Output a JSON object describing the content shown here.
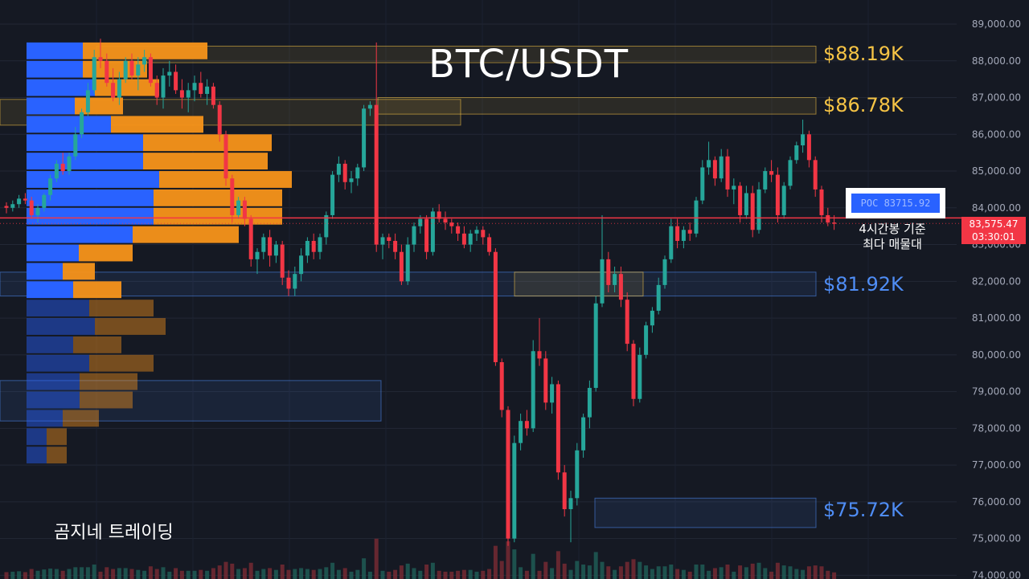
{
  "chart_data": {
    "type": "candlestick",
    "title": "BTC/USDT",
    "y_axis": {
      "ticks": [
        "89,000.00",
        "88,000.00",
        "87,000.00",
        "86,000.00",
        "85,000.00",
        "84,000.00",
        "83,000.00",
        "82,000.00",
        "81,000.00",
        "80,000.00",
        "79,000.00",
        "78,000.00",
        "77,000.00",
        "76,000.00",
        "75,000.00",
        "74,000.00"
      ],
      "tick_values": [
        89000,
        88000,
        87000,
        86000,
        85000,
        84000,
        83000,
        82000,
        81000,
        80000,
        79000,
        78000,
        77000,
        76000,
        75000,
        74000
      ],
      "range": [
        73900,
        89400
      ]
    },
    "current_price": {
      "value": 83575.47,
      "label": "83,575.47",
      "countdown": "03:30:01"
    },
    "poc": {
      "label": "POC",
      "value": "83715.92",
      "note_line1": "4시간봉 기준",
      "note_line2": "최다 매물대"
    },
    "levels": [
      {
        "label": "$88.19K",
        "value": 88190,
        "kind": "resistance"
      },
      {
        "label": "$86.78K",
        "value": 86780,
        "kind": "resistance"
      },
      {
        "label": "$81.92K",
        "value": 81920,
        "kind": "support"
      },
      {
        "label": "$75.72K",
        "value": 75720,
        "kind": "support"
      }
    ],
    "candles": [
      [
        84050,
        84150,
        83850,
        84000
      ],
      [
        84000,
        84200,
        83900,
        84100
      ],
      [
        84100,
        84350,
        84000,
        84250
      ],
      [
        84250,
        84400,
        84100,
        84200
      ],
      [
        84200,
        84300,
        83700,
        83800
      ],
      [
        83800,
        84100,
        83600,
        84000
      ],
      [
        84000,
        84400,
        83900,
        84350
      ],
      [
        84350,
        84900,
        84200,
        84800
      ],
      [
        84800,
        85300,
        84700,
        85200
      ],
      [
        85200,
        85500,
        84900,
        85000
      ],
      [
        85000,
        85500,
        84900,
        85400
      ],
      [
        85400,
        86200,
        85300,
        86000
      ],
      [
        86000,
        86700,
        85900,
        86600
      ],
      [
        86600,
        87400,
        86500,
        87200
      ],
      [
        87200,
        88300,
        87100,
        88100
      ],
      [
        88100,
        88600,
        87800,
        88000
      ],
      [
        88000,
        88200,
        87300,
        87400
      ],
      [
        87400,
        87800,
        86900,
        87000
      ],
      [
        87000,
        87700,
        86800,
        87500
      ],
      [
        87500,
        88100,
        87400,
        88000
      ],
      [
        88000,
        88200,
        87500,
        87600
      ],
      [
        87600,
        88100,
        87200,
        87900
      ],
      [
        87900,
        88300,
        87700,
        88100
      ],
      [
        88100,
        88200,
        87300,
        87400
      ],
      [
        87400,
        87600,
        86800,
        87000
      ],
      [
        87000,
        87800,
        86700,
        87600
      ],
      [
        87600,
        88000,
        87300,
        87700
      ],
      [
        87700,
        87900,
        87100,
        87200
      ],
      [
        87200,
        87500,
        86700,
        87000
      ],
      [
        87000,
        87400,
        86600,
        87200
      ],
      [
        87200,
        87600,
        86900,
        87400
      ],
      [
        87400,
        87700,
        87000,
        87100
      ],
      [
        87100,
        87500,
        86800,
        87300
      ],
      [
        87300,
        87400,
        86700,
        86800
      ],
      [
        86800,
        86900,
        85800,
        86000
      ],
      [
        86000,
        86100,
        84600,
        84800
      ],
      [
        84800,
        84900,
        83600,
        83800
      ],
      [
        83800,
        84300,
        83700,
        84200
      ],
      [
        84200,
        84300,
        83500,
        83700
      ],
      [
        83700,
        83800,
        82400,
        82600
      ],
      [
        82600,
        82900,
        82200,
        82800
      ],
      [
        82800,
        83300,
        82600,
        83200
      ],
      [
        83200,
        83400,
        82400,
        82700
      ],
      [
        82700,
        83100,
        82500,
        83000
      ],
      [
        83000,
        83100,
        81900,
        82100
      ],
      [
        82100,
        82300,
        81600,
        81800
      ],
      [
        81800,
        82400,
        81600,
        82200
      ],
      [
        82200,
        82900,
        82000,
        82700
      ],
      [
        82700,
        83200,
        82500,
        83100
      ],
      [
        83100,
        83300,
        82600,
        82800
      ],
      [
        82800,
        83300,
        82600,
        83200
      ],
      [
        83200,
        83900,
        83000,
        83800
      ],
      [
        83800,
        85000,
        83700,
        84900
      ],
      [
        84900,
        85400,
        84700,
        85200
      ],
      [
        85200,
        85300,
        84500,
        84700
      ],
      [
        84700,
        85000,
        84400,
        84800
      ],
      [
        84800,
        85200,
        84600,
        85100
      ],
      [
        85100,
        86800,
        85000,
        86700
      ],
      [
        86700,
        86900,
        86500,
        86800
      ],
      [
        86800,
        88500,
        82800,
        83000
      ],
      [
        83000,
        83300,
        82600,
        83200
      ],
      [
        83200,
        83300,
        82900,
        83100
      ],
      [
        83100,
        83300,
        82600,
        82800
      ],
      [
        82800,
        83000,
        81900,
        82000
      ],
      [
        82000,
        83200,
        81900,
        83000
      ],
      [
        83000,
        83600,
        82800,
        83500
      ],
      [
        83500,
        83800,
        83300,
        83700
      ],
      [
        83700,
        83800,
        82600,
        82800
      ],
      [
        82800,
        84000,
        82700,
        83900
      ],
      [
        83900,
        84100,
        83600,
        83700
      ],
      [
        83700,
        83900,
        83400,
        83600
      ],
      [
        83600,
        83700,
        83300,
        83500
      ],
      [
        83500,
        83600,
        83100,
        83300
      ],
      [
        83300,
        83500,
        82900,
        83000
      ],
      [
        83000,
        83400,
        82800,
        83300
      ],
      [
        83300,
        83500,
        83100,
        83400
      ],
      [
        83400,
        83500,
        83000,
        83200
      ],
      [
        83200,
        83300,
        82700,
        82800
      ],
      [
        82800,
        82900,
        79700,
        79800
      ],
      [
        79800,
        79900,
        78300,
        78500
      ],
      [
        78500,
        78600,
        74800,
        75000
      ],
      [
        75000,
        77800,
        74900,
        77600
      ],
      [
        77600,
        78400,
        77400,
        78200
      ],
      [
        78200,
        78500,
        77800,
        78000
      ],
      [
        78000,
        80400,
        77900,
        80100
      ],
      [
        80100,
        81000,
        79700,
        79900
      ],
      [
        79900,
        80100,
        78500,
        78700
      ],
      [
        78700,
        79400,
        78400,
        79200
      ],
      [
        79200,
        79300,
        76600,
        76800
      ],
      [
        76800,
        77000,
        75600,
        75800
      ],
      [
        75800,
        76300,
        74900,
        76100
      ],
      [
        76100,
        77600,
        75900,
        77400
      ],
      [
        77400,
        78400,
        77200,
        78300
      ],
      [
        78300,
        79300,
        78000,
        79100
      ],
      [
        79100,
        81600,
        79000,
        81400
      ],
      [
        81400,
        83800,
        81300,
        82600
      ],
      [
        82600,
        82800,
        81700,
        81900
      ],
      [
        81900,
        82400,
        81700,
        82200
      ],
      [
        82200,
        82400,
        81300,
        81500
      ],
      [
        81500,
        81700,
        80100,
        80300
      ],
      [
        80300,
        80400,
        78600,
        78800
      ],
      [
        78800,
        80200,
        78700,
        80000
      ],
      [
        80000,
        80900,
        79900,
        80800
      ],
      [
        80800,
        81300,
        80600,
        81200
      ],
      [
        81200,
        82100,
        81100,
        81900
      ],
      [
        81900,
        82700,
        81800,
        82600
      ],
      [
        82600,
        83700,
        82500,
        83500
      ],
      [
        83500,
        83700,
        82900,
        83100
      ],
      [
        83100,
        83500,
        82900,
        83400
      ],
      [
        83400,
        83600,
        83100,
        83300
      ],
      [
        83300,
        84300,
        83200,
        84200
      ],
      [
        84200,
        85300,
        84100,
        85100
      ],
      [
        85100,
        85800,
        84900,
        85300
      ],
      [
        85300,
        85400,
        84600,
        84800
      ],
      [
        84800,
        85600,
        84700,
        85400
      ],
      [
        85400,
        85600,
        84300,
        84500
      ],
      [
        84500,
        84800,
        84100,
        84600
      ],
      [
        84600,
        84700,
        83600,
        83800
      ],
      [
        83800,
        84600,
        83700,
        84400
      ],
      [
        84400,
        84600,
        83200,
        83400
      ],
      [
        83400,
        84700,
        83300,
        84500
      ],
      [
        84500,
        85100,
        84400,
        85000
      ],
      [
        85000,
        85300,
        84700,
        84900
      ],
      [
        84900,
        85100,
        83600,
        83800
      ],
      [
        83800,
        84700,
        83700,
        84600
      ],
      [
        84600,
        85400,
        84500,
        85300
      ],
      [
        85300,
        85800,
        85200,
        85700
      ],
      [
        85700,
        86400,
        85500,
        86000
      ],
      [
        86000,
        86100,
        85100,
        85300
      ],
      [
        85300,
        85400,
        84300,
        84500
      ],
      [
        84500,
        84600,
        83600,
        83800
      ],
      [
        83800,
        84000,
        83500,
        83600
      ],
      [
        83600,
        83800,
        83400,
        83575
      ]
    ],
    "volume_profile": [
      {
        "price": 88000,
        "buy": 70,
        "sell": 155,
        "active": true
      },
      {
        "price": 87500,
        "buy": 70,
        "sell": 80,
        "active": true
      },
      {
        "price": 87000,
        "buy": 85,
        "sell": 80,
        "active": true
      },
      {
        "price": 86500,
        "buy": 60,
        "sell": 60,
        "active": true
      },
      {
        "price": 86000,
        "buy": 105,
        "sell": 115,
        "active": true
      },
      {
        "price": 85500,
        "buy": 145,
        "sell": 160,
        "active": true
      },
      {
        "price": 85000,
        "buy": 145,
        "sell": 155,
        "active": true
      },
      {
        "price": 84500,
        "buy": 165,
        "sell": 165,
        "active": true
      },
      {
        "price": 84000,
        "buy": 158,
        "sell": 160,
        "active": true
      },
      {
        "price": 83500,
        "buy": 158,
        "sell": 160,
        "active": true
      },
      {
        "price": 83000,
        "buy": 132,
        "sell": 132,
        "active": true
      },
      {
        "price": 82500,
        "buy": 65,
        "sell": 67,
        "active": true
      },
      {
        "price": 82000,
        "buy": 45,
        "sell": 40,
        "active": true
      },
      {
        "price": 81500,
        "buy": 58,
        "sell": 60,
        "active": true
      },
      {
        "price": 81000,
        "buy": 78,
        "sell": 80,
        "active": false
      },
      {
        "price": 80500,
        "buy": 85,
        "sell": 88,
        "active": false
      },
      {
        "price": 80000,
        "buy": 58,
        "sell": 60,
        "active": false
      },
      {
        "price": 79500,
        "buy": 78,
        "sell": 80,
        "active": false
      },
      {
        "price": 79000,
        "buy": 66,
        "sell": 72,
        "active": false
      },
      {
        "price": 78500,
        "buy": 66,
        "sell": 66,
        "active": false
      },
      {
        "price": 78000,
        "buy": 45,
        "sell": 45,
        "active": false
      },
      {
        "price": 77500,
        "buy": 25,
        "sell": 25,
        "active": false
      },
      {
        "price": 77000,
        "buy": 25,
        "sell": 25,
        "active": false
      }
    ],
    "zones": [
      {
        "top": 88400,
        "bottom": 87950,
        "x0": 120,
        "x1": 1015,
        "kind": "yellow"
      },
      {
        "top": 86950,
        "bottom": 86250,
        "x0": 0,
        "x1": 573,
        "kind": "yellow"
      },
      {
        "top": 87000,
        "bottom": 86550,
        "x0": 470,
        "x1": 1015,
        "kind": "yellow"
      },
      {
        "top": 82250,
        "bottom": 81600,
        "x0": 0,
        "x1": 1015,
        "kind": "blue"
      },
      {
        "top": 82250,
        "bottom": 81600,
        "x0": 640,
        "x1": 800,
        "kind": "yellow"
      },
      {
        "top": 79300,
        "bottom": 78200,
        "x0": 0,
        "x1": 474,
        "kind": "blue"
      },
      {
        "top": 76100,
        "bottom": 75300,
        "x0": 740,
        "x1": 1015,
        "kind": "blue"
      }
    ]
  },
  "watermark": "곰지네 트레이딩",
  "colors": {
    "up": "#26a69a",
    "down": "#f23645",
    "buy": "#2962ff",
    "sell": "#f7931a",
    "background": "#151923"
  }
}
